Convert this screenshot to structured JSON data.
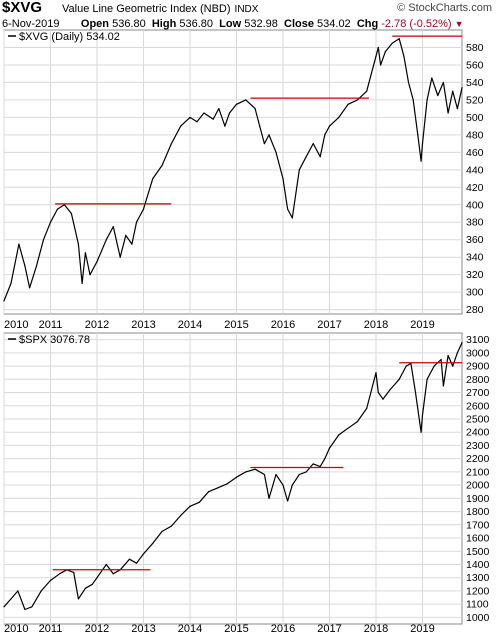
{
  "header": {
    "symbol": "$XVG",
    "description": "Value Line Geometric Index (NBD)",
    "exchange": "INDX",
    "source": "© StockCharts.com",
    "date": "6-Nov-2019",
    "open_label": "Open",
    "open": "536.80",
    "high_label": "High",
    "high": "536.80",
    "low_label": "Low",
    "low": "532.98",
    "close_label": "Close",
    "close": "534.02",
    "chg_label": "Chg",
    "chg": "-2.78 (-0.52%)",
    "chg_arrow": "▼"
  },
  "colors": {
    "price": "#000000",
    "resistance": "#cc0000",
    "grid": "#d9d9d9",
    "frame": "#888888"
  },
  "chart_data": [
    {
      "type": "line",
      "legend": "$XVG (Daily) 534.02",
      "x_tick_labels": [
        "2010",
        "2011",
        "2012",
        "2013",
        "2014",
        "2015",
        "2016",
        "2017",
        "2018",
        "2019"
      ],
      "xlim": [
        2010.0,
        2019.85
      ],
      "ylim": [
        275,
        600
      ],
      "y_ticks": [
        280,
        300,
        320,
        340,
        360,
        380,
        400,
        420,
        440,
        460,
        480,
        500,
        520,
        540,
        560,
        580
      ],
      "series": [
        {
          "x": [
            2010.0,
            2010.15,
            2010.32,
            2010.45,
            2010.55,
            2010.7,
            2010.85,
            2011.0,
            2011.15,
            2011.3,
            2011.45,
            2011.6,
            2011.68,
            2011.75,
            2011.85,
            2012.0,
            2012.2,
            2012.35,
            2012.5,
            2012.62,
            2012.75,
            2012.85,
            2013.0,
            2013.2,
            2013.4,
            2013.6,
            2013.8,
            2014.0,
            2014.15,
            2014.3,
            2014.5,
            2014.62,
            2014.75,
            2014.85,
            2015.0,
            2015.2,
            2015.4,
            2015.5,
            2015.6,
            2015.7,
            2015.85,
            2016.0,
            2016.1,
            2016.2,
            2016.35,
            2016.5,
            2016.65,
            2016.8,
            2016.9,
            2017.0,
            2017.2,
            2017.4,
            2017.6,
            2017.8,
            2018.0,
            2018.05,
            2018.1,
            2018.2,
            2018.35,
            2018.5,
            2018.6,
            2018.7,
            2018.8,
            2018.9,
            2018.97,
            2019.0,
            2019.1,
            2019.2,
            2019.33,
            2019.45,
            2019.55,
            2019.65,
            2019.75,
            2019.85
          ],
          "y": [
            290,
            310,
            355,
            330,
            305,
            330,
            360,
            380,
            395,
            400,
            390,
            355,
            310,
            345,
            320,
            335,
            360,
            375,
            340,
            365,
            355,
            380,
            395,
            430,
            445,
            470,
            490,
            500,
            495,
            505,
            498,
            510,
            490,
            505,
            515,
            520,
            510,
            490,
            470,
            480,
            460,
            430,
            395,
            385,
            440,
            455,
            470,
            455,
            480,
            490,
            500,
            515,
            520,
            530,
            570,
            580,
            560,
            575,
            585,
            590,
            570,
            540,
            520,
            480,
            450,
            470,
            520,
            545,
            525,
            540,
            505,
            530,
            510,
            534
          ]
        }
      ],
      "resistance_lines": [
        {
          "x": [
            2011.1,
            2013.6
          ],
          "y": 401
        },
        {
          "x": [
            2015.3,
            2017.85
          ],
          "y": 522
        },
        {
          "x": [
            2018.35,
            2019.85
          ],
          "y": 593
        }
      ]
    },
    {
      "type": "line",
      "legend": "$SPX 3076.78",
      "x_tick_labels": [
        "2010",
        "2011",
        "2012",
        "2013",
        "2014",
        "2015",
        "2016",
        "2017",
        "2018",
        "2019"
      ],
      "xlim": [
        2010.0,
        2019.85
      ],
      "ylim": [
        950,
        3150
      ],
      "y_ticks": [
        1000,
        1100,
        1200,
        1300,
        1400,
        1500,
        1600,
        1700,
        1800,
        1900,
        2000,
        2100,
        2200,
        2300,
        2400,
        2500,
        2600,
        2700,
        2800,
        2900,
        3000,
        3100
      ],
      "series": [
        {
          "x": [
            2010.0,
            2010.15,
            2010.3,
            2010.45,
            2010.6,
            2010.8,
            2011.0,
            2011.2,
            2011.35,
            2011.5,
            2011.6,
            2011.75,
            2011.9,
            2012.0,
            2012.2,
            2012.35,
            2012.5,
            2012.7,
            2012.85,
            2013.0,
            2013.2,
            2013.4,
            2013.6,
            2013.8,
            2014.0,
            2014.2,
            2014.4,
            2014.6,
            2014.8,
            2015.0,
            2015.2,
            2015.4,
            2015.6,
            2015.7,
            2015.85,
            2016.0,
            2016.1,
            2016.2,
            2016.35,
            2016.5,
            2016.65,
            2016.8,
            2016.9,
            2017.0,
            2017.2,
            2017.4,
            2017.6,
            2017.8,
            2018.0,
            2018.05,
            2018.15,
            2018.3,
            2018.5,
            2018.65,
            2018.75,
            2018.85,
            2018.97,
            2019.0,
            2019.1,
            2019.25,
            2019.4,
            2019.45,
            2019.55,
            2019.65,
            2019.75,
            2019.85
          ],
          "y": [
            1080,
            1140,
            1200,
            1060,
            1080,
            1200,
            1280,
            1330,
            1360,
            1340,
            1140,
            1220,
            1250,
            1300,
            1400,
            1330,
            1360,
            1440,
            1410,
            1480,
            1560,
            1650,
            1690,
            1770,
            1840,
            1870,
            1950,
            1980,
            2010,
            2060,
            2100,
            2120,
            2080,
            1900,
            2080,
            2000,
            1880,
            2000,
            2080,
            2100,
            2160,
            2140,
            2200,
            2280,
            2380,
            2430,
            2480,
            2580,
            2850,
            2700,
            2650,
            2720,
            2800,
            2900,
            2920,
            2700,
            2400,
            2530,
            2800,
            2900,
            2950,
            2750,
            2980,
            2900,
            3000,
            3077
          ]
        }
      ],
      "resistance_lines": [
        {
          "x": [
            2011.05,
            2013.15
          ],
          "y": 1360
        },
        {
          "x": [
            2015.3,
            2017.3
          ],
          "y": 2133
        },
        {
          "x": [
            2018.5,
            2019.85
          ],
          "y": 2925
        }
      ]
    }
  ]
}
